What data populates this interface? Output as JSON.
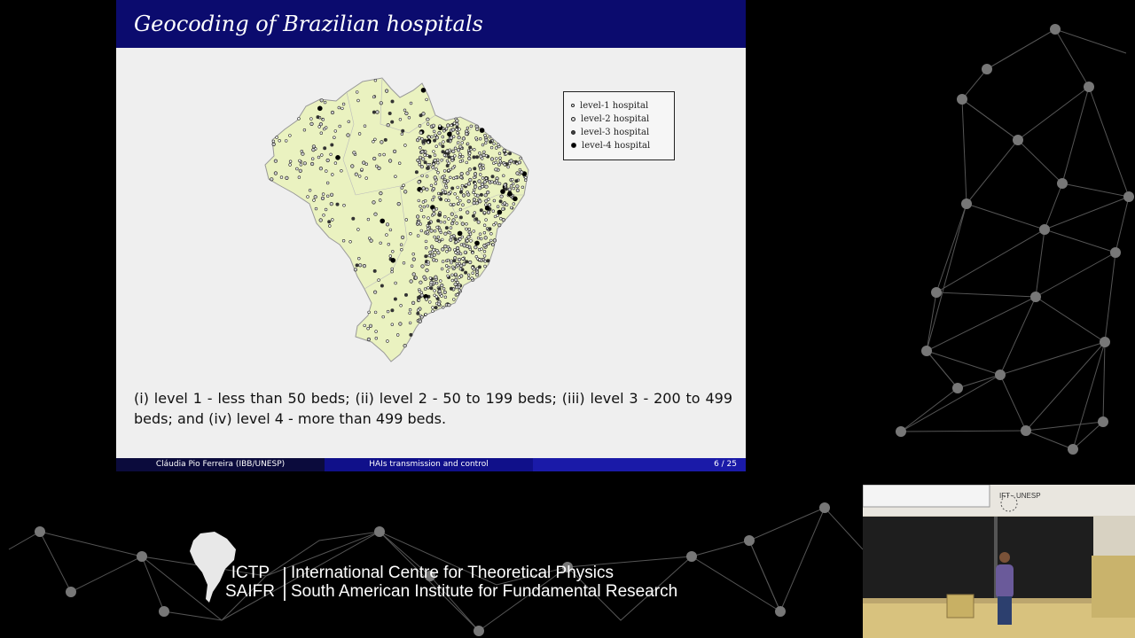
{
  "slide": {
    "title": "Geocoding of Brazilian hospitals",
    "legend": [
      {
        "label": "level-1 hospital",
        "marker": "hollow-small"
      },
      {
        "label": "level-2 hospital",
        "marker": "hollow-medium"
      },
      {
        "label": "level-3 hospital",
        "marker": "filled-medium"
      },
      {
        "label": "level-4 hospital",
        "marker": "filled-large"
      }
    ],
    "caption": "(i) level 1 - less than 50 beds; (ii) level 2 - 50 to 199 beds; (iii) level 3 - 200 to 499 beds; and (iv) level 4 - more than 499 beds.",
    "footer": {
      "author": "Cláudia Pio Ferreira   (IBB/UNESP)",
      "talk": "HAIs transmission and control",
      "page": "6 / 25"
    },
    "colors": {
      "title_bar": "#0b0b6e",
      "map_fill": "#eaf2c0",
      "background": "#efefef"
    }
  },
  "branding": {
    "acronym_1": "ICTP",
    "acronym_2": "SAIFR",
    "name_1": "International Centre for Theoretical Physics",
    "name_2": "South American Institute for Fundamental Research"
  },
  "webcam": {
    "wall_label": "IFT - UNESP"
  }
}
